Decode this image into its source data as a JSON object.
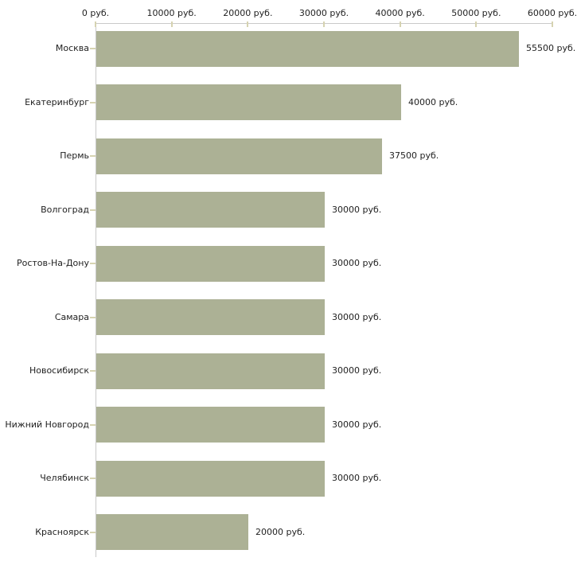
{
  "chart_data": {
    "type": "bar",
    "orientation": "horizontal",
    "title": "",
    "unit": "руб.",
    "categories": [
      "Москва",
      "Екатеринбург",
      "Пермь",
      "Волгоград",
      "Ростов-На-Дону",
      "Самара",
      "Новосибирск",
      "Нижний Новгород",
      "Челябинск",
      "Красноярск"
    ],
    "values": [
      55500,
      40000,
      37500,
      30000,
      30000,
      30000,
      30000,
      30000,
      30000,
      20000
    ],
    "value_labels": [
      "55500 руб.",
      "40000 руб.",
      "37500 руб.",
      "30000 руб.",
      "30000 руб.",
      "30000 руб.",
      "30000 руб.",
      "30000 руб.",
      "30000 руб.",
      "20000 руб."
    ],
    "x_axis": {
      "min": 0,
      "max": 60000,
      "tick_step": 10000,
      "tick_labels": [
        "0 руб.",
        "10000 руб.",
        "20000 руб.",
        "30000 руб.",
        "40000 руб.",
        "50000 руб.",
        "60000 руб."
      ]
    },
    "legend": null,
    "grid": false,
    "colors": {
      "bar": "#acb195",
      "axis_line": "#c9c9c9",
      "tick_mark": "#d6d3b1",
      "text": "#1f1f1f",
      "background": "#ffffff"
    }
  }
}
